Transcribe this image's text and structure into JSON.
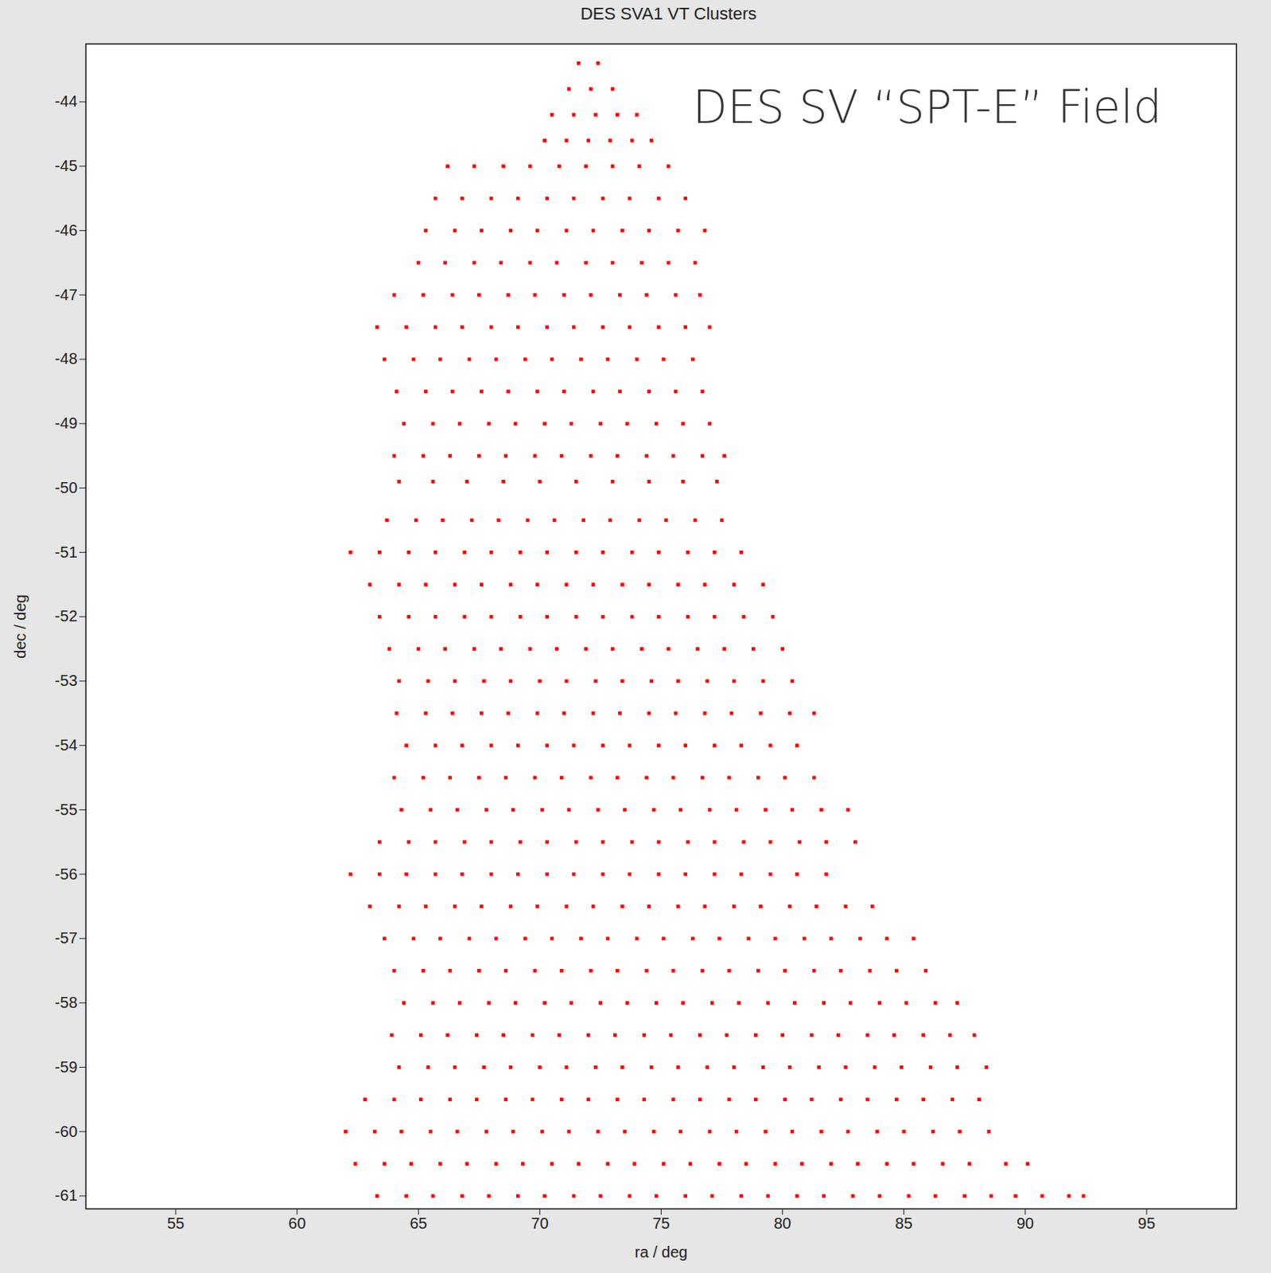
{
  "chart_data": {
    "type": "scatter",
    "title": "DES SVA1 VT Clusters",
    "x_label": "ra / deg",
    "y_label": "dec / deg",
    "annotations": [
      {
        "text": "DES SV “SPT-E” Field",
        "x": 76.3,
        "y": -44.1
      }
    ],
    "color": "#ff0000",
    "marker": "square",
    "xlim": [
      51.3,
      98.7
    ],
    "ylim": [
      -61.2,
      -43.1
    ],
    "xticks": [
      55,
      60,
      65,
      70,
      75,
      80,
      85,
      90,
      95
    ],
    "yticks": [
      -44,
      -45,
      -46,
      -47,
      -48,
      -49,
      -50,
      -51,
      -52,
      -53,
      -54,
      -55,
      -56,
      -57,
      -58,
      -59,
      -60,
      -61
    ],
    "grid": false,
    "x": [
      71.6,
      72.4,
      71.2,
      72.1,
      73.0,
      70.5,
      71.4,
      72.3,
      73.2,
      74.0,
      70.2,
      71.1,
      72.0,
      72.9,
      73.8,
      74.6,
      66.2,
      67.3,
      68.5,
      69.6,
      70.8,
      71.9,
      73.0,
      74.1,
      75.3,
      65.7,
      66.8,
      68.0,
      69.1,
      70.3,
      71.4,
      72.6,
      73.7,
      74.9,
      76.0,
      65.3,
      66.5,
      67.6,
      68.8,
      69.9,
      71.1,
      72.2,
      73.4,
      74.5,
      75.7,
      76.8,
      65.0,
      66.1,
      67.3,
      68.4,
      69.6,
      70.7,
      71.9,
      73.0,
      74.2,
      75.3,
      76.4,
      64.0,
      65.2,
      66.4,
      67.5,
      68.7,
      69.8,
      71.0,
      72.1,
      73.3,
      74.4,
      75.6,
      76.6,
      63.3,
      64.5,
      65.7,
      66.8,
      68.0,
      69.1,
      70.3,
      71.4,
      72.6,
      73.7,
      74.9,
      76.0,
      77.0,
      63.6,
      64.8,
      65.9,
      67.1,
      68.2,
      69.4,
      70.5,
      71.7,
      72.8,
      74.0,
      75.1,
      76.3,
      64.1,
      65.3,
      66.4,
      67.6,
      68.7,
      69.9,
      71.0,
      72.2,
      73.3,
      74.5,
      75.6,
      76.7,
      64.4,
      65.6,
      66.7,
      67.9,
      69.0,
      70.2,
      71.3,
      72.5,
      73.6,
      74.8,
      75.9,
      77.0,
      64.0,
      65.2,
      66.3,
      67.5,
      68.6,
      69.8,
      70.9,
      72.1,
      73.2,
      74.4,
      75.5,
      76.7,
      77.6,
      64.2,
      65.6,
      67.0,
      68.5,
      70.0,
      71.5,
      73.0,
      74.5,
      75.9,
      77.3,
      63.7,
      64.9,
      66.0,
      67.2,
      68.3,
      69.5,
      70.6,
      71.8,
      72.9,
      74.1,
      75.2,
      76.4,
      77.5,
      62.2,
      63.4,
      64.6,
      65.7,
      66.9,
      68.0,
      69.2,
      70.3,
      71.5,
      72.6,
      73.8,
      74.9,
      76.1,
      77.2,
      78.3,
      63.0,
      64.2,
      65.3,
      66.5,
      67.6,
      68.8,
      69.9,
      71.1,
      72.2,
      73.4,
      74.5,
      75.7,
      76.8,
      78.0,
      79.2,
      63.4,
      64.6,
      65.7,
      66.9,
      68.0,
      69.2,
      70.3,
      71.5,
      72.6,
      73.8,
      74.9,
      76.1,
      77.2,
      78.4,
      79.6,
      63.8,
      65.0,
      66.1,
      67.3,
      68.4,
      69.6,
      70.7,
      71.9,
      73.0,
      74.2,
      75.3,
      76.5,
      77.6,
      78.8,
      80.0,
      64.2,
      65.4,
      66.5,
      67.7,
      68.8,
      70.0,
      71.1,
      72.3,
      73.4,
      74.6,
      75.7,
      76.9,
      78.0,
      79.2,
      80.4,
      64.1,
      65.3,
      66.4,
      67.6,
      68.7,
      69.9,
      71.0,
      72.2,
      73.3,
      74.5,
      75.6,
      76.8,
      77.9,
      79.1,
      80.3,
      81.3,
      64.5,
      65.7,
      66.8,
      68.0,
      69.1,
      70.3,
      71.4,
      72.6,
      73.7,
      74.9,
      76.0,
      77.2,
      78.3,
      79.5,
      80.6,
      64.0,
      65.2,
      66.3,
      67.5,
      68.6,
      69.8,
      70.9,
      72.1,
      73.2,
      74.4,
      75.5,
      76.7,
      77.8,
      79.0,
      80.1,
      81.3,
      64.3,
      65.5,
      66.6,
      67.8,
      68.9,
      70.1,
      71.2,
      72.4,
      73.5,
      74.7,
      75.8,
      77.0,
      78.1,
      79.3,
      80.4,
      81.6,
      82.7,
      63.4,
      64.6,
      65.7,
      66.9,
      68.0,
      69.2,
      70.3,
      71.5,
      72.6,
      73.8,
      74.9,
      76.1,
      77.2,
      78.4,
      79.5,
      80.7,
      81.8,
      83.0,
      62.2,
      63.4,
      64.5,
      65.7,
      66.8,
      68.0,
      69.1,
      70.3,
      71.4,
      72.6,
      73.7,
      74.9,
      76.0,
      77.2,
      78.3,
      79.5,
      80.6,
      81.8,
      63.0,
      64.2,
      65.3,
      66.5,
      67.6,
      68.8,
      69.9,
      71.1,
      72.2,
      73.4,
      74.5,
      75.7,
      76.8,
      78.0,
      79.1,
      80.3,
      81.4,
      82.6,
      83.7,
      63.6,
      64.8,
      65.9,
      67.1,
      68.2,
      69.4,
      70.5,
      71.7,
      72.8,
      74.0,
      75.1,
      76.3,
      77.4,
      78.6,
      79.7,
      80.9,
      82.0,
      83.2,
      84.3,
      85.4,
      64.0,
      65.2,
      66.3,
      67.5,
      68.6,
      69.8,
      70.9,
      72.1,
      73.2,
      74.4,
      75.5,
      76.7,
      77.8,
      79.0,
      80.1,
      81.3,
      82.4,
      83.6,
      84.7,
      85.9,
      64.4,
      65.6,
      66.7,
      67.9,
      69.0,
      70.2,
      71.3,
      72.5,
      73.6,
      74.8,
      75.9,
      77.1,
      78.2,
      79.4,
      80.5,
      81.7,
      82.8,
      84.0,
      85.1,
      86.3,
      87.2,
      63.9,
      65.1,
      66.2,
      67.4,
      68.5,
      69.7,
      70.8,
      72.0,
      73.1,
      74.3,
      75.4,
      76.6,
      77.7,
      78.9,
      80.0,
      81.2,
      82.3,
      83.5,
      84.6,
      85.8,
      86.9,
      87.9,
      64.2,
      65.4,
      66.5,
      67.7,
      68.8,
      70.0,
      71.1,
      72.3,
      73.4,
      74.6,
      75.7,
      76.9,
      78.0,
      79.2,
      80.3,
      81.5,
      82.6,
      83.8,
      84.9,
      86.1,
      87.2,
      88.4,
      62.8,
      64.0,
      65.1,
      66.3,
      67.4,
      68.6,
      69.7,
      70.9,
      72.0,
      73.2,
      74.3,
      75.5,
      76.6,
      77.8,
      78.9,
      80.1,
      81.2,
      82.4,
      83.5,
      84.7,
      85.8,
      87.0,
      88.1,
      62.0,
      63.2,
      64.3,
      65.5,
      66.6,
      67.8,
      68.9,
      70.1,
      71.2,
      72.4,
      73.5,
      74.7,
      75.8,
      77.0,
      78.1,
      79.3,
      80.4,
      81.6,
      82.7,
      83.9,
      85.0,
      86.2,
      87.3,
      88.5,
      62.4,
      63.6,
      64.7,
      65.9,
      67.0,
      68.2,
      69.3,
      70.5,
      71.6,
      72.8,
      73.9,
      75.1,
      76.2,
      77.4,
      78.5,
      79.7,
      80.8,
      82.0,
      83.1,
      84.3,
      85.4,
      86.6,
      87.7,
      89.2,
      90.1,
      63.3,
      64.5,
      65.6,
      66.8,
      67.9,
      69.1,
      70.2,
      71.4,
      72.5,
      73.7,
      74.8,
      76.0,
      77.1,
      78.3,
      79.4,
      80.6,
      81.7,
      82.9,
      84.0,
      85.2,
      86.3,
      87.5,
      88.6,
      89.6,
      90.7,
      91.8,
      92.4
    ],
    "values": [
      -43.4,
      -43.4,
      -43.8,
      -43.8,
      -43.8,
      -44.2,
      -44.2,
      -44.2,
      -44.2,
      -44.2,
      -44.6,
      -44.6,
      -44.6,
      -44.6,
      -44.6,
      -44.6,
      -45.0,
      -45.0,
      -45.0,
      -45.0,
      -45.0,
      -45.0,
      -45.0,
      -45.0,
      -45.0,
      -45.5,
      -45.5,
      -45.5,
      -45.5,
      -45.5,
      -45.5,
      -45.5,
      -45.5,
      -45.5,
      -45.5,
      -46.0,
      -46.0,
      -46.0,
      -46.0,
      -46.0,
      -46.0,
      -46.0,
      -46.0,
      -46.0,
      -46.0,
      -46.0,
      -46.5,
      -46.5,
      -46.5,
      -46.5,
      -46.5,
      -46.5,
      -46.5,
      -46.5,
      -46.5,
      -46.5,
      -46.5,
      -47.0,
      -47.0,
      -47.0,
      -47.0,
      -47.0,
      -47.0,
      -47.0,
      -47.0,
      -47.0,
      -47.0,
      -47.0,
      -47.0,
      -47.5,
      -47.5,
      -47.5,
      -47.5,
      -47.5,
      -47.5,
      -47.5,
      -47.5,
      -47.5,
      -47.5,
      -47.5,
      -47.5,
      -47.5,
      -48.0,
      -48.0,
      -48.0,
      -48.0,
      -48.0,
      -48.0,
      -48.0,
      -48.0,
      -48.0,
      -48.0,
      -48.0,
      -48.0,
      -48.5,
      -48.5,
      -48.5,
      -48.5,
      -48.5,
      -48.5,
      -48.5,
      -48.5,
      -48.5,
      -48.5,
      -48.5,
      -48.5,
      -49.0,
      -49.0,
      -49.0,
      -49.0,
      -49.0,
      -49.0,
      -49.0,
      -49.0,
      -49.0,
      -49.0,
      -49.0,
      -49.0,
      -49.5,
      -49.5,
      -49.5,
      -49.5,
      -49.5,
      -49.5,
      -49.5,
      -49.5,
      -49.5,
      -49.5,
      -49.5,
      -49.5,
      -49.5,
      -49.9,
      -49.9,
      -49.9,
      -49.9,
      -49.9,
      -49.9,
      -49.9,
      -49.9,
      -49.9,
      -49.9,
      -50.5,
      -50.5,
      -50.5,
      -50.5,
      -50.5,
      -50.5,
      -50.5,
      -50.5,
      -50.5,
      -50.5,
      -50.5,
      -50.5,
      -50.5,
      -51.0,
      -51.0,
      -51.0,
      -51.0,
      -51.0,
      -51.0,
      -51.0,
      -51.0,
      -51.0,
      -51.0,
      -51.0,
      -51.0,
      -51.0,
      -51.0,
      -51.0,
      -51.5,
      -51.5,
      -51.5,
      -51.5,
      -51.5,
      -51.5,
      -51.5,
      -51.5,
      -51.5,
      -51.5,
      -51.5,
      -51.5,
      -51.5,
      -51.5,
      -51.5,
      -52.0,
      -52.0,
      -52.0,
      -52.0,
      -52.0,
      -52.0,
      -52.0,
      -52.0,
      -52.0,
      -52.0,
      -52.0,
      -52.0,
      -52.0,
      -52.0,
      -52.0,
      -52.5,
      -52.5,
      -52.5,
      -52.5,
      -52.5,
      -52.5,
      -52.5,
      -52.5,
      -52.5,
      -52.5,
      -52.5,
      -52.5,
      -52.5,
      -52.5,
      -52.5,
      -53.0,
      -53.0,
      -53.0,
      -53.0,
      -53.0,
      -53.0,
      -53.0,
      -53.0,
      -53.0,
      -53.0,
      -53.0,
      -53.0,
      -53.0,
      -53.0,
      -53.0,
      -53.5,
      -53.5,
      -53.5,
      -53.5,
      -53.5,
      -53.5,
      -53.5,
      -53.5,
      -53.5,
      -53.5,
      -53.5,
      -53.5,
      -53.5,
      -53.5,
      -53.5,
      -53.5,
      -54.0,
      -54.0,
      -54.0,
      -54.0,
      -54.0,
      -54.0,
      -54.0,
      -54.0,
      -54.0,
      -54.0,
      -54.0,
      -54.0,
      -54.0,
      -54.0,
      -54.0,
      -54.5,
      -54.5,
      -54.5,
      -54.5,
      -54.5,
      -54.5,
      -54.5,
      -54.5,
      -54.5,
      -54.5,
      -54.5,
      -54.5,
      -54.5,
      -54.5,
      -54.5,
      -54.5,
      -55.0,
      -55.0,
      -55.0,
      -55.0,
      -55.0,
      -55.0,
      -55.0,
      -55.0,
      -55.0,
      -55.0,
      -55.0,
      -55.0,
      -55.0,
      -55.0,
      -55.0,
      -55.0,
      -55.0,
      -55.5,
      -55.5,
      -55.5,
      -55.5,
      -55.5,
      -55.5,
      -55.5,
      -55.5,
      -55.5,
      -55.5,
      -55.5,
      -55.5,
      -55.5,
      -55.5,
      -55.5,
      -55.5,
      -55.5,
      -55.5,
      -56.0,
      -56.0,
      -56.0,
      -56.0,
      -56.0,
      -56.0,
      -56.0,
      -56.0,
      -56.0,
      -56.0,
      -56.0,
      -56.0,
      -56.0,
      -56.0,
      -56.0,
      -56.0,
      -56.0,
      -56.0,
      -56.5,
      -56.5,
      -56.5,
      -56.5,
      -56.5,
      -56.5,
      -56.5,
      -56.5,
      -56.5,
      -56.5,
      -56.5,
      -56.5,
      -56.5,
      -56.5,
      -56.5,
      -56.5,
      -56.5,
      -56.5,
      -56.5,
      -57.0,
      -57.0,
      -57.0,
      -57.0,
      -57.0,
      -57.0,
      -57.0,
      -57.0,
      -57.0,
      -57.0,
      -57.0,
      -57.0,
      -57.0,
      -57.0,
      -57.0,
      -57.0,
      -57.0,
      -57.0,
      -57.0,
      -57.0,
      -57.5,
      -57.5,
      -57.5,
      -57.5,
      -57.5,
      -57.5,
      -57.5,
      -57.5,
      -57.5,
      -57.5,
      -57.5,
      -57.5,
      -57.5,
      -57.5,
      -57.5,
      -57.5,
      -57.5,
      -57.5,
      -57.5,
      -57.5,
      -58.0,
      -58.0,
      -58.0,
      -58.0,
      -58.0,
      -58.0,
      -58.0,
      -58.0,
      -58.0,
      -58.0,
      -58.0,
      -58.0,
      -58.0,
      -58.0,
      -58.0,
      -58.0,
      -58.0,
      -58.0,
      -58.0,
      -58.0,
      -58.0,
      -58.5,
      -58.5,
      -58.5,
      -58.5,
      -58.5,
      -58.5,
      -58.5,
      -58.5,
      -58.5,
      -58.5,
      -58.5,
      -58.5,
      -58.5,
      -58.5,
      -58.5,
      -58.5,
      -58.5,
      -58.5,
      -58.5,
      -58.5,
      -58.5,
      -58.5,
      -59.0,
      -59.0,
      -59.0,
      -59.0,
      -59.0,
      -59.0,
      -59.0,
      -59.0,
      -59.0,
      -59.0,
      -59.0,
      -59.0,
      -59.0,
      -59.0,
      -59.0,
      -59.0,
      -59.0,
      -59.0,
      -59.0,
      -59.0,
      -59.0,
      -59.0,
      -59.5,
      -59.5,
      -59.5,
      -59.5,
      -59.5,
      -59.5,
      -59.5,
      -59.5,
      -59.5,
      -59.5,
      -59.5,
      -59.5,
      -59.5,
      -59.5,
      -59.5,
      -59.5,
      -59.5,
      -59.5,
      -59.5,
      -59.5,
      -59.5,
      -59.5,
      -59.5,
      -60.0,
      -60.0,
      -60.0,
      -60.0,
      -60.0,
      -60.0,
      -60.0,
      -60.0,
      -60.0,
      -60.0,
      -60.0,
      -60.0,
      -60.0,
      -60.0,
      -60.0,
      -60.0,
      -60.0,
      -60.0,
      -60.0,
      -60.0,
      -60.0,
      -60.0,
      -60.0,
      -60.0,
      -60.5,
      -60.5,
      -60.5,
      -60.5,
      -60.5,
      -60.5,
      -60.5,
      -60.5,
      -60.5,
      -60.5,
      -60.5,
      -60.5,
      -60.5,
      -60.5,
      -60.5,
      -60.5,
      -60.5,
      -60.5,
      -60.5,
      -60.5,
      -60.5,
      -60.5,
      -60.5,
      -60.5,
      -60.5,
      -61.0,
      -61.0,
      -61.0,
      -61.0,
      -61.0,
      -61.0,
      -61.0,
      -61.0,
      -61.0,
      -61.0,
      -61.0,
      -61.0,
      -61.0,
      -61.0,
      -61.0,
      -61.0,
      -61.0,
      -61.0,
      -61.0,
      -61.0,
      -61.0,
      -61.0,
      -61.0,
      -61.0,
      -61.0,
      -61.0,
      -61.0
    ]
  }
}
